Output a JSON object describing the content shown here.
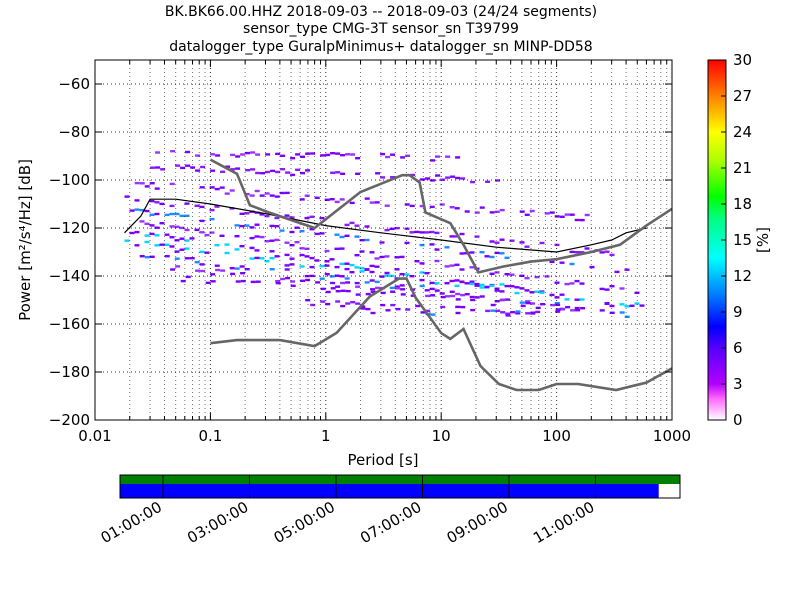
{
  "title": {
    "line1": "BK.BK66.00.HHZ   2018-09-03 -- 2018-09-03  (24/24 segments)",
    "line2": "sensor_type CMG-3T sensor_sn T39799",
    "line3": "datalogger_type GuralpMinimus+ datalogger_sn MINP-DD58"
  },
  "chart_data": {
    "type": "heatmap",
    "x_label": "Period [s]",
    "y_label": "Power [m²/s⁴/Hz] [dB]",
    "x_scale": "log",
    "x_range": [
      0.01,
      1000
    ],
    "y_range": [
      -200,
      -50
    ],
    "x_ticks": [
      {
        "v": 0.01,
        "label": "0.01"
      },
      {
        "v": 0.1,
        "label": "0.1"
      },
      {
        "v": 1,
        "label": "1"
      },
      {
        "v": 10,
        "label": "10"
      },
      {
        "v": 100,
        "label": "100"
      },
      {
        "v": 1000,
        "label": "1000"
      }
    ],
    "y_ticks": [
      -60,
      -80,
      -100,
      -120,
      -140,
      -160,
      -180,
      -200
    ],
    "grid": true,
    "colorbar": {
      "label": "[%]",
      "min": 0,
      "max": 30,
      "ticks": [
        0,
        3,
        6,
        9,
        12,
        15,
        18,
        21,
        24,
        27,
        30
      ],
      "colormap": "pqlx"
    },
    "noise_models": {
      "nhnm": [
        [
          0.1,
          -91.5
        ],
        [
          0.17,
          -97.4
        ],
        [
          0.22,
          -110.5
        ],
        [
          0.32,
          -113.5
        ],
        [
          0.8,
          -120
        ],
        [
          2.0,
          -105
        ],
        [
          4.6,
          -98
        ],
        [
          5.3,
          -98
        ],
        [
          6.5,
          -101
        ],
        [
          7.3,
          -113.5
        ],
        [
          12,
          -118
        ],
        [
          15.6,
          -127
        ],
        [
          21,
          -138.5
        ],
        [
          35,
          -136
        ],
        [
          60,
          -134
        ],
        [
          100,
          -133
        ],
        [
          200,
          -130
        ],
        [
          354,
          -127
        ],
        [
          600,
          -119
        ],
        [
          1000,
          -112
        ]
      ],
      "nlnm": [
        [
          0.1,
          -168
        ],
        [
          0.17,
          -166.7
        ],
        [
          0.4,
          -166.7
        ],
        [
          0.8,
          -169.2
        ],
        [
          1.24,
          -163.7
        ],
        [
          2.4,
          -148.6
        ],
        [
          4.3,
          -141.1
        ],
        [
          5.0,
          -141.1
        ],
        [
          6.0,
          -149
        ],
        [
          10,
          -163.8
        ],
        [
          12,
          -166.2
        ],
        [
          15.6,
          -162.1
        ],
        [
          21.9,
          -177.5
        ],
        [
          31.6,
          -185
        ],
        [
          45,
          -187.5
        ],
        [
          70,
          -187.5
        ],
        [
          100,
          -185
        ],
        [
          154,
          -185
        ],
        [
          328,
          -187.5
        ],
        [
          600,
          -184.4
        ],
        [
          1000,
          -178.5
        ]
      ],
      "mode_line": [
        [
          0.018,
          -122
        ],
        [
          0.025,
          -115
        ],
        [
          0.03,
          -108
        ],
        [
          0.05,
          -108
        ],
        [
          0.1,
          -110
        ],
        [
          0.3,
          -114
        ],
        [
          1,
          -119
        ],
        [
          3,
          -122
        ],
        [
          10,
          -125
        ],
        [
          30,
          -128
        ],
        [
          100,
          -130
        ],
        [
          200,
          -127
        ],
        [
          300,
          -125
        ],
        [
          400,
          -122
        ],
        [
          600,
          -120
        ]
      ]
    },
    "psd_bands": [
      {
        "center": -88,
        "x0": 0.03,
        "x1": 15,
        "slope": 0.6,
        "density": 0.55,
        "colors": [
          "#7b00ff",
          "#7b00ff",
          "#9a33ff"
        ]
      },
      {
        "center": -93,
        "x0": 0.03,
        "x1": 30,
        "slope": 1.6,
        "density": 0.65,
        "colors": [
          "#7b00ff",
          "#8c1aff"
        ]
      },
      {
        "center": -100,
        "x0": 0.02,
        "x1": 200,
        "slope": 3.0,
        "density": 0.6,
        "colors": [
          "#7b00ff",
          "#9a33ff"
        ]
      },
      {
        "center": -106,
        "x0": 0.018,
        "x1": 300,
        "slope": 4.5,
        "density": 0.65,
        "colors": [
          "#7b00ff",
          "#8c1aff"
        ]
      },
      {
        "center": -110,
        "x0": 0.018,
        "x1": 400,
        "slope": 5.0,
        "density": 0.55,
        "colors": [
          "#7b00ff",
          "#1a8cff"
        ]
      },
      {
        "center": -115,
        "x0": 0.018,
        "x1": 600,
        "slope": 5.5,
        "density": 0.6,
        "colors": [
          "#7b00ff",
          "#9a33ff"
        ]
      },
      {
        "center": -119,
        "x0": 0.018,
        "x1": 600,
        "slope": 6.0,
        "density": 0.65,
        "colors": [
          "#7b00ff",
          "#00d7ff",
          "#7b00ff"
        ]
      },
      {
        "center": -124,
        "x0": 0.018,
        "x1": 600,
        "slope": 5.0,
        "density": 0.6,
        "colors": [
          "#7b00ff",
          "#00d7ff"
        ]
      },
      {
        "center": -128,
        "x0": 0.02,
        "x1": 400,
        "slope": 5.0,
        "density": 0.55,
        "colors": [
          "#7b00ff",
          "#7b00ff",
          "#1a8cff"
        ]
      },
      {
        "center": -133,
        "x0": 0.03,
        "x1": 200,
        "slope": 4.0,
        "density": 0.5,
        "colors": [
          "#7b00ff",
          "#9a33ff"
        ]
      },
      {
        "center": -138,
        "x0": 0.05,
        "x1": 100,
        "slope": 3.0,
        "density": 0.45,
        "colors": [
          "#7b00ff"
        ]
      },
      {
        "center": -146,
        "x0": 0.6,
        "x1": 100,
        "slope": 2.0,
        "density": 0.5,
        "colors": [
          "#7b00ff",
          "#8c1aff"
        ]
      },
      {
        "center": -151,
        "x0": 2.0,
        "x1": 70,
        "slope": 1.0,
        "density": 0.5,
        "colors": [
          "#7b00ff",
          "#1a8cff"
        ]
      }
    ],
    "coverage": {
      "ticks": [
        "01:00:00",
        "03:00:00",
        "05:00:00",
        "07:00:00",
        "09:00:00",
        "11:00:00"
      ],
      "data_end_fraction": 0.962,
      "available_color": "#0000ff",
      "gap_color": "#ffffff",
      "processed_color": "#008000"
    }
  }
}
